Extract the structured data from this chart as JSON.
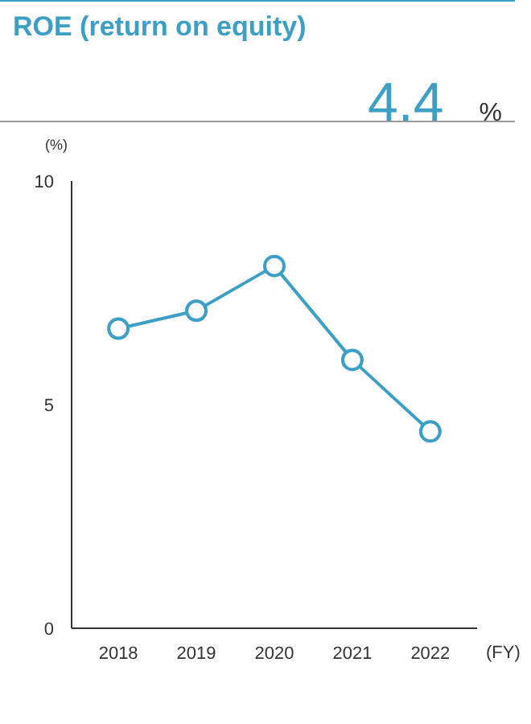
{
  "chart_data": {
    "type": "line",
    "title": "ROE (return on equity)",
    "subtitle": "4.4",
    "annotations": [
      "%"
    ],
    "categories": [
      "2018",
      "2019",
      "2020",
      "2021",
      "2022"
    ],
    "series": [
      {
        "color": "#3d9fc6",
        "values": [
          6.7,
          7.1,
          8.1,
          6.0,
          4.4
        ]
      }
    ],
    "ylim": [
      0,
      10
    ],
    "yticks": [
      0,
      5,
      10
    ],
    "ylabel": "(%)",
    "xlabel": "(FY)",
    "grid": false,
    "marker": "circle",
    "line_style": "solid"
  }
}
